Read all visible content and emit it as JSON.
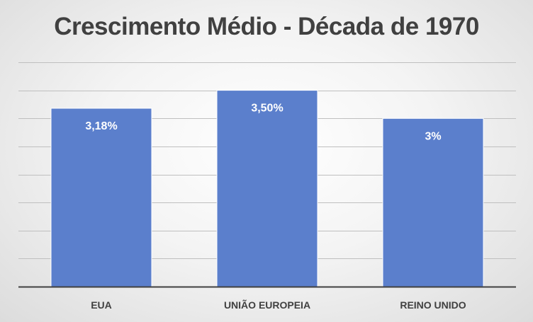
{
  "chart_data": {
    "type": "bar",
    "title": "Crescimento Médio - Década de 1970",
    "categories": [
      "EUA",
      "UNIÃO EUROPEIA",
      "REINO UNIDO"
    ],
    "values": [
      3.18,
      3.5,
      3.0
    ],
    "data_labels": [
      "3,18%",
      "3,50%",
      "3%"
    ],
    "ylim": [
      0.0,
      4.0
    ],
    "grid": true,
    "legend": "none",
    "bar_color": "#5b7fcc",
    "grid_color": "#bfbfbf",
    "axis_color": "#404040"
  }
}
